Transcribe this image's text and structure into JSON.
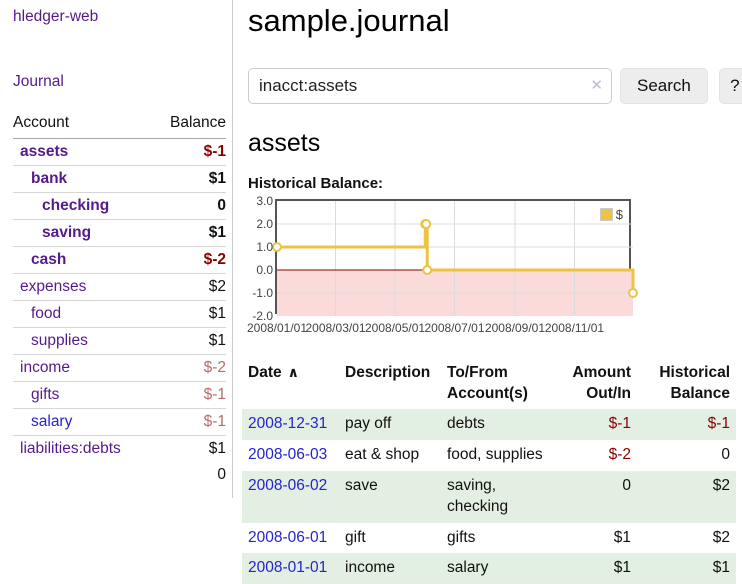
{
  "colors": {
    "purple": "#551a8b",
    "blue": "#2323d1",
    "neg": "#8b0000",
    "mutedneg": "#b36d6d",
    "rowgreen": "#e3efe2",
    "gold": "#ecc342",
    "pink": "#fbdada",
    "zero": "#8b0000",
    "chartborder": "#545454",
    "grid": "#dcdcdc",
    "divider": "#cccccc"
  },
  "sidebar": {
    "brand": "hledger-web",
    "journal_link": "Journal",
    "accounts": {
      "col_account": "Account",
      "col_balance": "Balance",
      "rows": [
        {
          "name": "assets",
          "indent": 1,
          "bold": true,
          "balance": "$-1",
          "balance_style": "negative",
          "link_style": "purple"
        },
        {
          "name": "bank",
          "indent": 2,
          "bold": true,
          "balance": "$1",
          "balance_style": "normal",
          "link_style": "purple"
        },
        {
          "name": "checking",
          "indent": 3,
          "bold": true,
          "balance": "0",
          "balance_style": "normal",
          "link_style": "purple"
        },
        {
          "name": "saving",
          "indent": 3,
          "bold": true,
          "balance": "$1",
          "balance_style": "normal",
          "link_style": "purple"
        },
        {
          "name": "cash",
          "indent": 2,
          "bold": true,
          "balance": "$-2",
          "balance_style": "negative",
          "link_style": "purple"
        },
        {
          "name": "expenses",
          "indent": 1,
          "bold": false,
          "balance": "$2",
          "balance_style": "normal",
          "link_style": "purple"
        },
        {
          "name": "food",
          "indent": 2,
          "bold": false,
          "balance": "$1",
          "balance_style": "normal",
          "link_style": "purple"
        },
        {
          "name": "supplies",
          "indent": 2,
          "bold": false,
          "balance": "$1",
          "balance_style": "normal",
          "link_style": "purple"
        },
        {
          "name": "income",
          "indent": 1,
          "bold": false,
          "balance": "$-2",
          "balance_style": "muted-negative",
          "link_style": "purple"
        },
        {
          "name": "gifts",
          "indent": 2,
          "bold": false,
          "balance": "$-1",
          "balance_style": "muted-negative",
          "link_style": "purple"
        },
        {
          "name": "salary",
          "indent": 2,
          "bold": false,
          "balance": "$-1",
          "balance_style": "muted-negative",
          "link_style": "blue"
        },
        {
          "name": "liabilities:debts",
          "indent": 1,
          "bold": false,
          "balance": "$1",
          "balance_style": "normal",
          "link_style": "purple"
        }
      ],
      "total": "0"
    }
  },
  "header": {
    "title": "sample.journal"
  },
  "search": {
    "value": "inacct:assets",
    "clear_icon": "✕",
    "search_button": "Search",
    "help_button": "?"
  },
  "account_page": {
    "heading": "assets",
    "chart_title": "Historical Balance:"
  },
  "chart_data": {
    "type": "line",
    "style": "step",
    "title": "Historical Balance:",
    "series": [
      {
        "name": "$",
        "color": "#ecc342",
        "points": [
          [
            "2008-01-01",
            1
          ],
          [
            "2008-06-01",
            2
          ],
          [
            "2008-06-02",
            2
          ],
          [
            "2008-06-03",
            0
          ],
          [
            "2008-12-31",
            -1
          ]
        ]
      }
    ],
    "xlim": [
      "2008-01-01",
      "2008-12-31"
    ],
    "ylim": [
      -2,
      3
    ],
    "x_ticks": [
      {
        "label": "2008/01/01",
        "date": "2008-01-01"
      },
      {
        "label": "2008/03/01",
        "date": "2008-03-01"
      },
      {
        "label": "2008/05/01",
        "date": "2008-05-01"
      },
      {
        "label": "2008/07/01",
        "date": "2008-07-01"
      },
      {
        "label": "2008/09/01",
        "date": "2008-09-01"
      },
      {
        "label": "2008/11/01",
        "date": "2008-11-01"
      }
    ],
    "y_ticks": [
      {
        "label": "3.0",
        "value": 3
      },
      {
        "label": "2.0",
        "value": 2
      },
      {
        "label": "1.0",
        "value": 1
      },
      {
        "label": "0.0",
        "value": 0
      },
      {
        "label": "-1.0",
        "value": -1
      },
      {
        "label": "-2.0",
        "value": -2
      }
    ],
    "grid": true,
    "negative_region_color": "#fbdada",
    "zero_line_color": "#8b0000",
    "grid_color": "#dcdcdc",
    "legend": {
      "label": "$",
      "position": "top-right"
    }
  },
  "register": {
    "columns": {
      "date": "Date",
      "sort_icon": "∧",
      "description": "Description",
      "tofrom_line1": "To/From",
      "tofrom_line2": "Account(s)",
      "amount_line1": "Amount",
      "amount_line2": "Out/In",
      "balance_line1": "Historical",
      "balance_line2": "Balance"
    },
    "rows": [
      {
        "date": "2008-12-31",
        "description": "pay off",
        "accounts": "debts",
        "amount": "$-1",
        "amount_negative": true,
        "balance": "$-1",
        "balance_negative": true,
        "shaded": true
      },
      {
        "date": "2008-06-03",
        "description": "eat & shop",
        "accounts": "food, supplies",
        "amount": "$-2",
        "amount_negative": true,
        "balance": "0",
        "balance_negative": false,
        "shaded": false
      },
      {
        "date": "2008-06-02",
        "description": "save",
        "accounts": "saving, checking",
        "amount": "0",
        "amount_negative": false,
        "balance": "$2",
        "balance_negative": false,
        "shaded": true
      },
      {
        "date": "2008-06-01",
        "description": "gift",
        "accounts": "gifts",
        "amount": "$1",
        "amount_negative": false,
        "balance": "$2",
        "balance_negative": false,
        "shaded": false
      },
      {
        "date": "2008-01-01",
        "description": "income",
        "accounts": "salary",
        "amount": "$1",
        "amount_negative": false,
        "balance": "$1",
        "balance_negative": false,
        "shaded": true
      }
    ]
  }
}
